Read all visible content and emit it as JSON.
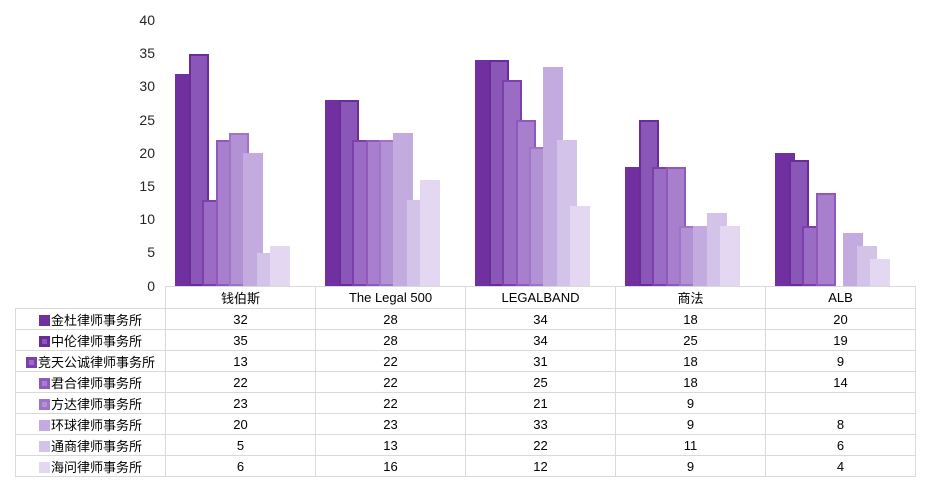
{
  "chart_data": {
    "type": "bar",
    "title": "",
    "xlabel": "",
    "ylabel": "",
    "categories": [
      "钱伯斯",
      "The Legal 500",
      "LEGALBAND",
      "商法",
      "ALB"
    ],
    "series": [
      {
        "name": "金杜律师事务所",
        "values": [
          32,
          28,
          34,
          18,
          20
        ],
        "fill": "#7030A0",
        "border": null
      },
      {
        "name": "中伦律师事务所",
        "values": [
          35,
          28,
          34,
          25,
          19
        ],
        "fill": "#8A57B8",
        "border": "#6A2C98"
      },
      {
        "name": "竞天公诚律师事务所",
        "values": [
          13,
          22,
          31,
          18,
          9
        ],
        "fill": "#9A6CC4",
        "border": "#7D3FAB"
      },
      {
        "name": "君合律师事务所",
        "values": [
          22,
          22,
          25,
          18,
          14
        ],
        "fill": "#A77FCC",
        "border": "#9058BB"
      },
      {
        "name": "方达律师事务所",
        "values": [
          23,
          22,
          21,
          9,
          null
        ],
        "fill": "#B292D4",
        "border": "#A173C8"
      },
      {
        "name": "环球律师事务所",
        "values": [
          20,
          23,
          33,
          9,
          8
        ],
        "fill": "#C3ABDF",
        "border": null
      },
      {
        "name": "通商律师事务所",
        "values": [
          5,
          13,
          22,
          11,
          6
        ],
        "fill": "#D4C3E9",
        "border": null
      },
      {
        "name": "海问律师事务所",
        "values": [
          6,
          16,
          12,
          9,
          4
        ],
        "fill": "#E3D7F1",
        "border": null
      }
    ],
    "ylim": [
      0,
      40
    ],
    "yticks": [
      0,
      5,
      10,
      15,
      20,
      25,
      30,
      35,
      40
    ],
    "grid": false,
    "legend_position": "data-table-left-column",
    "table_corner_label": ""
  },
  "colors": {
    "background": "#FFFFFF",
    "table_border": "#D9D9D9",
    "axis_text": "#262626",
    "table_text": "#000000"
  }
}
